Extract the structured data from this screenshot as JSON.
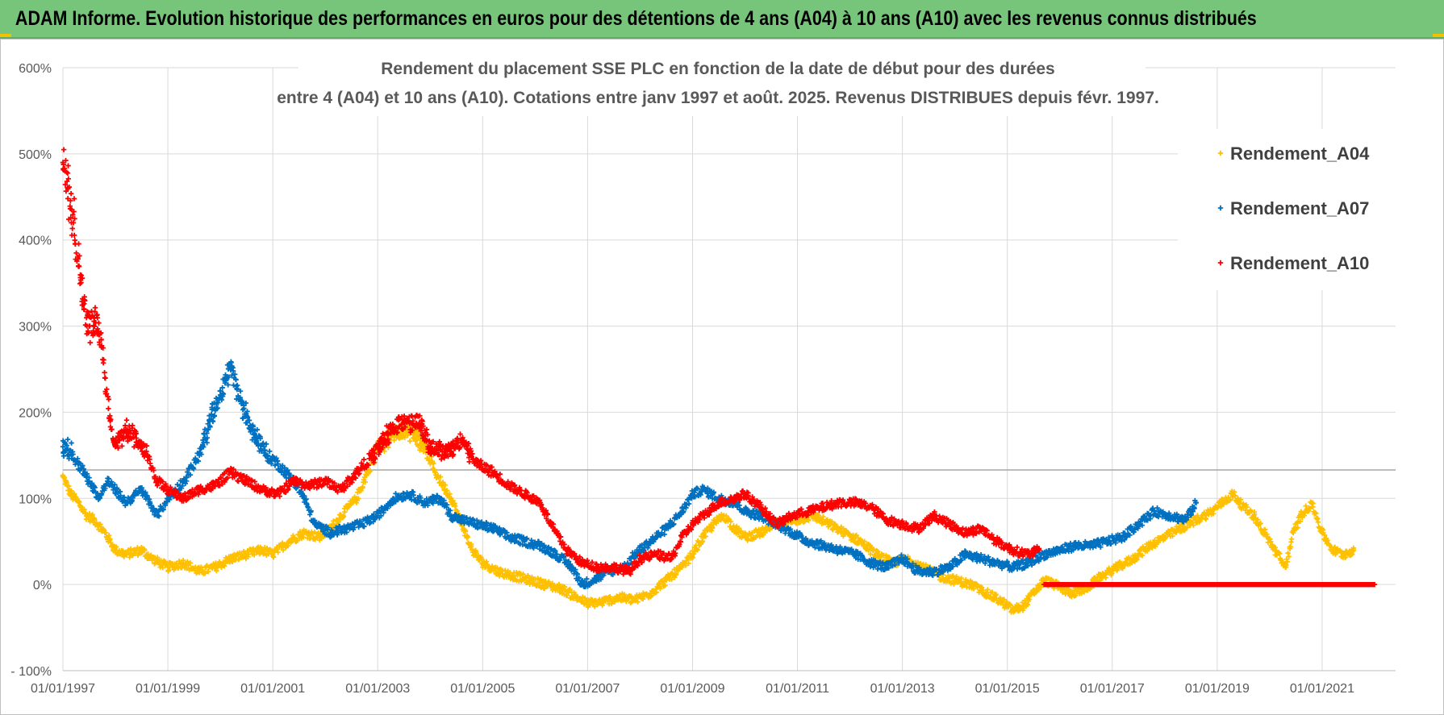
{
  "header": {
    "banner": "ADAM Informe. Evolution historique des performances en euros pour des détentions de 4 ans (A04) à 10 ans (A10) avec les revenus connus distribués"
  },
  "chart_data": {
    "type": "scatter",
    "title_line1": "Rendement du placement SSE PLC en fonction de la date de début pour des durées",
    "title_line2": "entre 4 (A04) et 10 ans (A10). Cotations entre janv 1997 et août. 2025. Revenus DISTRIBUES depuis févr. 1997.",
    "xlabel": "",
    "ylabel": "",
    "xlim": [
      "1997-01-01",
      "2022-06-01"
    ],
    "ylim": [
      -100,
      600
    ],
    "y_ticks": [
      -100,
      0,
      100,
      200,
      300,
      400,
      500,
      600
    ],
    "y_tick_labels": [
      "- 100%",
      "0%",
      "100%",
      "200%",
      "300%",
      "400%",
      "500%",
      "600%"
    ],
    "x_tick_labels": [
      "01/01/1997",
      "01/01/1999",
      "01/01/2001",
      "01/01/2003",
      "01/01/2005",
      "01/01/2007",
      "01/01/2009",
      "01/01/2011",
      "01/01/2013",
      "01/01/2015",
      "01/01/2017",
      "01/01/2019",
      "01/01/2021"
    ],
    "x_tick_years": [
      1997,
      1999,
      2001,
      2003,
      2005,
      2007,
      2009,
      2011,
      2013,
      2015,
      2017,
      2019,
      2021
    ],
    "grid": "on",
    "legend_position": "right",
    "reference_line_y": 133,
    "colors": {
      "A04": "#ffc000",
      "A07": "#0070c0",
      "A10": "#ff0000",
      "grid": "#d9d9d9",
      "reference": "#a6a6a6"
    },
    "series": [
      {
        "name": "Rendement_A04",
        "color": "#ffc000",
        "points": [
          [
            1997.0,
            125
          ],
          [
            1997.15,
            105
          ],
          [
            1997.3,
            95
          ],
          [
            1997.45,
            80
          ],
          [
            1997.6,
            75
          ],
          [
            1997.8,
            60
          ],
          [
            1998.0,
            40
          ],
          [
            1998.2,
            35
          ],
          [
            1998.5,
            40
          ],
          [
            1998.7,
            30
          ],
          [
            1999.0,
            20
          ],
          [
            1999.3,
            25
          ],
          [
            1999.6,
            15
          ],
          [
            1999.9,
            20
          ],
          [
            2000.2,
            30
          ],
          [
            2000.5,
            35
          ],
          [
            2000.8,
            40
          ],
          [
            2001.0,
            35
          ],
          [
            2001.3,
            50
          ],
          [
            2001.6,
            60
          ],
          [
            2001.9,
            55
          ],
          [
            2002.1,
            65
          ],
          [
            2002.3,
            80
          ],
          [
            2002.6,
            100
          ],
          [
            2002.8,
            130
          ],
          [
            2003.0,
            160
          ],
          [
            2003.3,
            175
          ],
          [
            2003.6,
            180
          ],
          [
            2003.9,
            160
          ],
          [
            2004.1,
            130
          ],
          [
            2004.4,
            100
          ],
          [
            2004.6,
            70
          ],
          [
            2004.8,
            40
          ],
          [
            2005.0,
            25
          ],
          [
            2005.3,
            15
          ],
          [
            2005.6,
            10
          ],
          [
            2005.9,
            5
          ],
          [
            2006.2,
            0
          ],
          [
            2006.5,
            -5
          ],
          [
            2006.8,
            -15
          ],
          [
            2007.0,
            -22
          ],
          [
            2007.3,
            -20
          ],
          [
            2007.6,
            -15
          ],
          [
            2007.9,
            -18
          ],
          [
            2008.2,
            -10
          ],
          [
            2008.5,
            5
          ],
          [
            2008.8,
            20
          ],
          [
            2009.0,
            35
          ],
          [
            2009.2,
            55
          ],
          [
            2009.4,
            70
          ],
          [
            2009.6,
            80
          ],
          [
            2009.8,
            65
          ],
          [
            2010.0,
            55
          ],
          [
            2010.3,
            60
          ],
          [
            2010.6,
            70
          ],
          [
            2011.0,
            75
          ],
          [
            2011.3,
            80
          ],
          [
            2011.6,
            70
          ],
          [
            2011.9,
            60
          ],
          [
            2012.2,
            50
          ],
          [
            2012.5,
            35
          ],
          [
            2012.8,
            25
          ],
          [
            2013.1,
            30
          ],
          [
            2013.4,
            20
          ],
          [
            2013.7,
            10
          ],
          [
            2014.0,
            5
          ],
          [
            2014.3,
            0
          ],
          [
            2014.6,
            -10
          ],
          [
            2014.9,
            -20
          ],
          [
            2015.1,
            -30
          ],
          [
            2015.3,
            -25
          ],
          [
            2015.5,
            -10
          ],
          [
            2015.7,
            5
          ],
          [
            2015.9,
            0
          ],
          [
            2016.2,
            -10
          ],
          [
            2016.5,
            -5
          ],
          [
            2016.8,
            10
          ],
          [
            2017.1,
            20
          ],
          [
            2017.4,
            30
          ],
          [
            2017.7,
            45
          ],
          [
            2018.0,
            55
          ],
          [
            2018.3,
            65
          ],
          [
            2018.6,
            75
          ],
          [
            2018.9,
            85
          ],
          [
            2019.1,
            95
          ],
          [
            2019.3,
            105
          ],
          [
            2019.5,
            90
          ],
          [
            2019.7,
            80
          ],
          [
            2019.9,
            60
          ],
          [
            2020.1,
            40
          ],
          [
            2020.3,
            20
          ],
          [
            2020.45,
            60
          ],
          [
            2020.6,
            80
          ],
          [
            2020.8,
            95
          ],
          [
            2021.0,
            60
          ],
          [
            2021.2,
            40
          ],
          [
            2021.4,
            35
          ],
          [
            2021.6,
            40
          ]
        ]
      },
      {
        "name": "Rendement_A07",
        "color": "#0070c0",
        "points": [
          [
            1997.0,
            160
          ],
          [
            1997.15,
            155
          ],
          [
            1997.3,
            140
          ],
          [
            1997.5,
            120
          ],
          [
            1997.7,
            100
          ],
          [
            1997.85,
            120
          ],
          [
            1998.0,
            110
          ],
          [
            1998.2,
            95
          ],
          [
            1998.5,
            110
          ],
          [
            1998.8,
            80
          ],
          [
            1999.0,
            100
          ],
          [
            1999.3,
            120
          ],
          [
            1999.6,
            150
          ],
          [
            1999.8,
            190
          ],
          [
            2000.0,
            220
          ],
          [
            2000.2,
            250
          ],
          [
            2000.4,
            210
          ],
          [
            2000.6,
            180
          ],
          [
            2000.9,
            150
          ],
          [
            2001.1,
            140
          ],
          [
            2001.4,
            120
          ],
          [
            2001.6,
            100
          ],
          [
            2001.8,
            70
          ],
          [
            2002.1,
            60
          ],
          [
            2002.4,
            65
          ],
          [
            2002.7,
            70
          ],
          [
            2003.0,
            80
          ],
          [
            2003.3,
            100
          ],
          [
            2003.6,
            105
          ],
          [
            2003.9,
            95
          ],
          [
            2004.2,
            100
          ],
          [
            2004.4,
            80
          ],
          [
            2004.6,
            75
          ],
          [
            2004.9,
            70
          ],
          [
            2005.2,
            65
          ],
          [
            2005.5,
            55
          ],
          [
            2005.8,
            50
          ],
          [
            2006.1,
            45
          ],
          [
            2006.4,
            35
          ],
          [
            2006.7,
            20
          ],
          [
            2006.9,
            0
          ],
          [
            2007.1,
            5
          ],
          [
            2007.4,
            15
          ],
          [
            2007.7,
            20
          ],
          [
            2007.9,
            35
          ],
          [
            2008.2,
            50
          ],
          [
            2008.5,
            65
          ],
          [
            2008.8,
            85
          ],
          [
            2009.0,
            105
          ],
          [
            2009.2,
            110
          ],
          [
            2009.5,
            100
          ],
          [
            2009.8,
            95
          ],
          [
            2010.0,
            85
          ],
          [
            2010.3,
            80
          ],
          [
            2010.6,
            70
          ],
          [
            2010.9,
            60
          ],
          [
            2011.2,
            50
          ],
          [
            2011.5,
            45
          ],
          [
            2011.8,
            40
          ],
          [
            2012.1,
            35
          ],
          [
            2012.4,
            25
          ],
          [
            2012.7,
            20
          ],
          [
            2013.0,
            30
          ],
          [
            2013.3,
            15
          ],
          [
            2013.6,
            15
          ],
          [
            2013.9,
            20
          ],
          [
            2014.2,
            35
          ],
          [
            2014.5,
            30
          ],
          [
            2014.8,
            25
          ],
          [
            2015.1,
            20
          ],
          [
            2015.4,
            25
          ],
          [
            2015.7,
            35
          ],
          [
            2016.0,
            40
          ],
          [
            2016.3,
            45
          ],
          [
            2016.6,
            45
          ],
          [
            2016.9,
            50
          ],
          [
            2017.2,
            55
          ],
          [
            2017.5,
            70
          ],
          [
            2017.8,
            85
          ],
          [
            2018.1,
            80
          ],
          [
            2018.4,
            75
          ],
          [
            2018.6,
            95
          ]
        ]
      },
      {
        "name": "Rendement_A10",
        "color": "#ff0000",
        "points": [
          [
            1997.0,
            490
          ],
          [
            1997.1,
            460
          ],
          [
            1997.2,
            420
          ],
          [
            1997.3,
            370
          ],
          [
            1997.4,
            320
          ],
          [
            1997.5,
            300
          ],
          [
            1997.6,
            310
          ],
          [
            1997.7,
            290
          ],
          [
            1997.8,
            240
          ],
          [
            1997.9,
            190
          ],
          [
            1998.0,
            160
          ],
          [
            1998.2,
            180
          ],
          [
            1998.4,
            170
          ],
          [
            1998.6,
            150
          ],
          [
            1998.8,
            120
          ],
          [
            1999.0,
            110
          ],
          [
            1999.3,
            100
          ],
          [
            1999.6,
            110
          ],
          [
            1999.9,
            115
          ],
          [
            2000.2,
            130
          ],
          [
            2000.5,
            120
          ],
          [
            2000.8,
            110
          ],
          [
            2001.1,
            105
          ],
          [
            2001.4,
            120
          ],
          [
            2001.7,
            115
          ],
          [
            2002.0,
            120
          ],
          [
            2002.3,
            110
          ],
          [
            2002.6,
            130
          ],
          [
            2002.9,
            150
          ],
          [
            2003.2,
            175
          ],
          [
            2003.5,
            190
          ],
          [
            2003.8,
            185
          ],
          [
            2004.0,
            160
          ],
          [
            2004.3,
            155
          ],
          [
            2004.6,
            165
          ],
          [
            2004.9,
            140
          ],
          [
            2005.2,
            130
          ],
          [
            2005.5,
            115
          ],
          [
            2005.8,
            105
          ],
          [
            2006.1,
            95
          ],
          [
            2006.3,
            70
          ],
          [
            2006.6,
            40
          ],
          [
            2006.9,
            25
          ],
          [
            2007.2,
            20
          ],
          [
            2007.5,
            20
          ],
          [
            2007.8,
            15
          ],
          [
            2008.0,
            30
          ],
          [
            2008.3,
            35
          ],
          [
            2008.6,
            30
          ],
          [
            2008.8,
            55
          ],
          [
            2009.0,
            70
          ],
          [
            2009.2,
            80
          ],
          [
            2009.5,
            95
          ],
          [
            2009.8,
            100
          ],
          [
            2010.0,
            105
          ],
          [
            2010.3,
            90
          ],
          [
            2010.6,
            70
          ],
          [
            2010.9,
            80
          ],
          [
            2011.2,
            85
          ],
          [
            2011.5,
            90
          ],
          [
            2011.8,
            95
          ],
          [
            2012.1,
            95
          ],
          [
            2012.4,
            90
          ],
          [
            2012.7,
            75
          ],
          [
            2013.0,
            70
          ],
          [
            2013.3,
            65
          ],
          [
            2013.6,
            80
          ],
          [
            2013.9,
            70
          ],
          [
            2014.2,
            60
          ],
          [
            2014.5,
            65
          ],
          [
            2014.8,
            50
          ],
          [
            2015.1,
            40
          ],
          [
            2015.4,
            35
          ],
          [
            2015.6,
            40
          ]
        ],
        "zero_segment": {
          "from": 2015.7,
          "to": 2022.0,
          "value": 0
        }
      }
    ]
  }
}
